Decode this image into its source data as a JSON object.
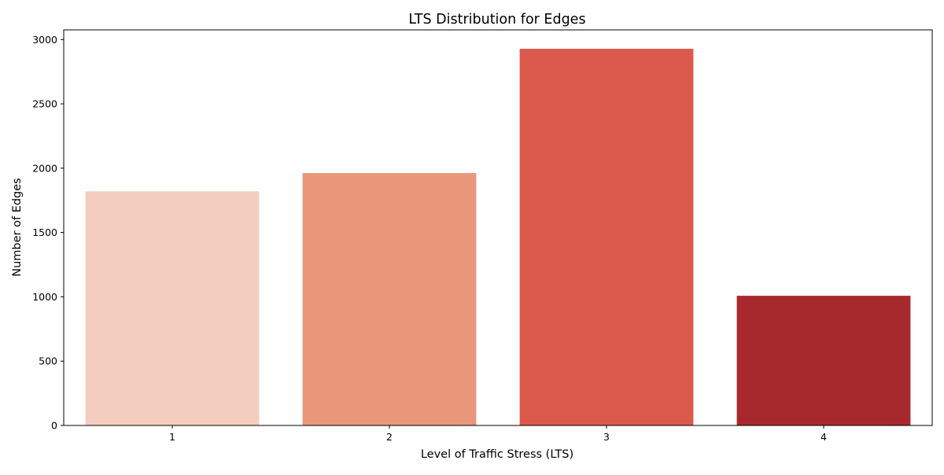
{
  "chart_data": {
    "type": "bar",
    "title": "LTS Distribution for Edges",
    "xlabel": "Level of Traffic Stress (LTS)",
    "ylabel": "Number of Edges",
    "categories": [
      "1",
      "2",
      "3",
      "4"
    ],
    "values": [
      1820,
      1962,
      2928,
      1008
    ],
    "colors": [
      "#f3cdbe",
      "#e9967b",
      "#db5a4b",
      "#a7292e"
    ],
    "ylim": [
      0,
      3075
    ],
    "yticks": [
      0,
      500,
      1000,
      1500,
      2000,
      2500,
      3000
    ],
    "grid": false,
    "legend": "none"
  }
}
